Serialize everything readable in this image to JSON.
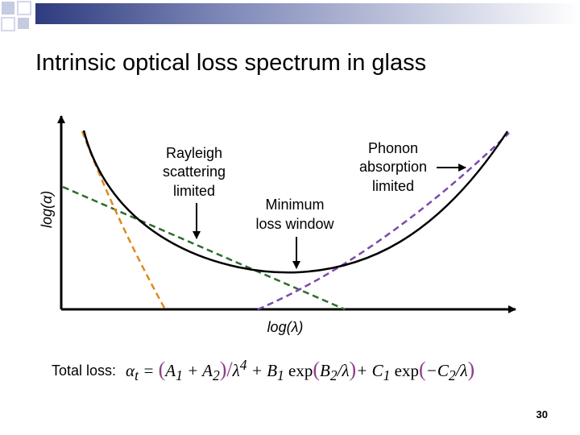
{
  "slide": {
    "title": "Intrinsic optical loss spectrum in glass",
    "page_number": "30",
    "accent_colors": {
      "blue_gray": "#c5cbe0",
      "navy": "#2e3b7e",
      "formula_paren": "#8e3e86"
    }
  },
  "diagram": {
    "y_axis_label": "log(α)",
    "x_axis_label": "log(λ)",
    "annotations": {
      "rayleigh": [
        "Rayleigh",
        "scattering",
        "limited"
      ],
      "minimum": [
        "Minimum",
        "loss window"
      ],
      "phonon": [
        "Phonon",
        "absorption",
        "limited"
      ]
    },
    "curves": [
      {
        "name": "total-loss-curve",
        "color": "#000000",
        "style": "solid"
      },
      {
        "name": "rayleigh-scattering-curve",
        "color": "#e08a1e",
        "style": "dashed"
      },
      {
        "name": "phonon-absorption-curve",
        "color": "#7a4aa8",
        "style": "dashed"
      },
      {
        "name": "urbach-tail-curve",
        "color": "#2e6b2e",
        "style": "dashed"
      }
    ]
  },
  "formula": {
    "label": "Total loss:",
    "alpha_t": "α",
    "sub_t": "t",
    "eq": " = ",
    "open1": "(",
    "A1": "A",
    "s1": "1",
    "plus1": " + ",
    "A2": "A",
    "s2": "2",
    "close1": ")",
    "slash1": "/",
    "lam4": "λ",
    "sup4": "4",
    "plus2": " + ",
    "B1": "B",
    "sb1": "1",
    "exp1": " exp",
    "open2": "(",
    "B2": "B",
    "sb2": "2",
    "slash2": "/",
    "lam2": "λ",
    "close2": ")",
    "plus3": "+ ",
    "C1": "C",
    "sc1": "1",
    "exp2": " exp",
    "open3": "(",
    "minus": "−",
    "C2": "C",
    "sc2": "2",
    "slash3": "/",
    "lam3": "λ",
    "close3": ")"
  }
}
